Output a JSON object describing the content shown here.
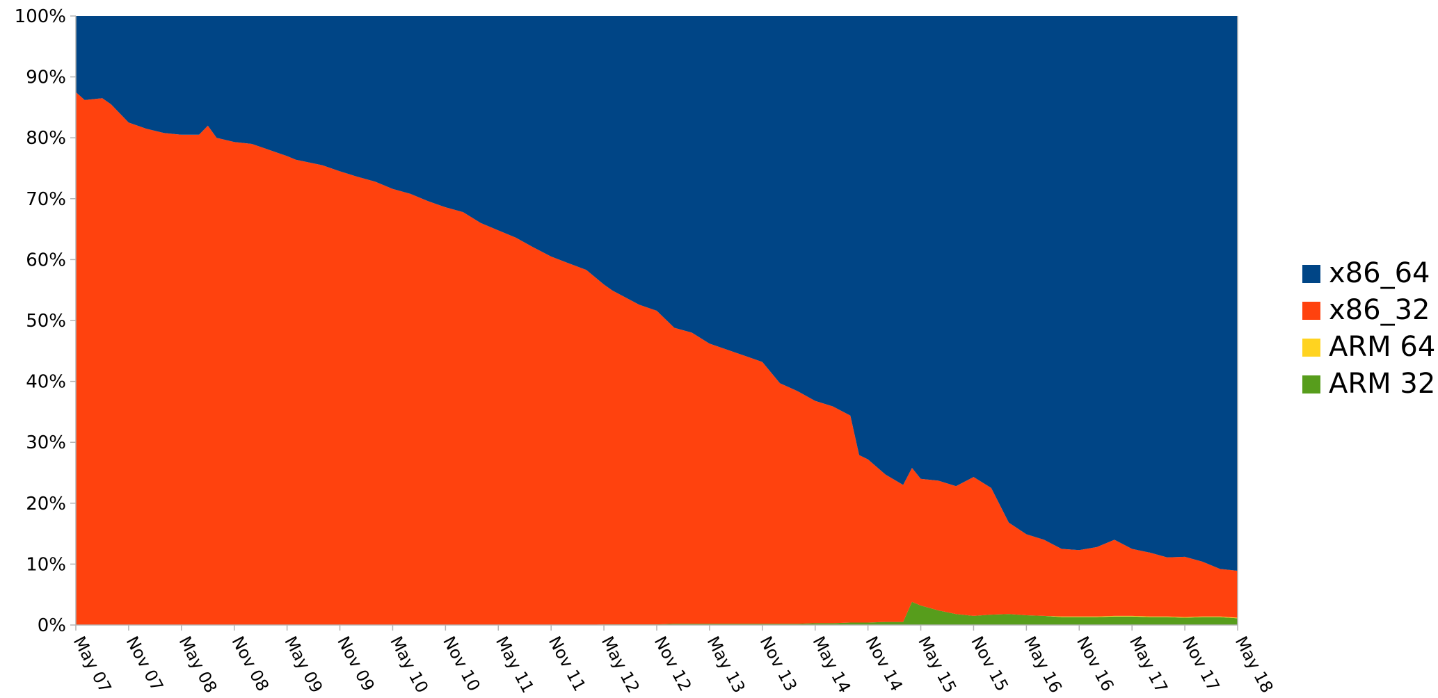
{
  "chart_data": {
    "type": "area",
    "stacked": "percent",
    "title": "",
    "xlabel": "",
    "ylabel": "",
    "ylim": [
      0,
      100
    ],
    "y_ticks": [
      "0%",
      "10%",
      "20%",
      "30%",
      "40%",
      "50%",
      "60%",
      "70%",
      "80%",
      "90%",
      "100%"
    ],
    "x_ticks": [
      "May 07",
      "Nov 07",
      "May 08",
      "Nov 08",
      "May 09",
      "Nov 09",
      "May 10",
      "Nov 10",
      "May 11",
      "Nov 11",
      "May 12",
      "Nov 12",
      "May 13",
      "Nov 13",
      "May 14",
      "Nov 14",
      "May 15",
      "Nov 15",
      "May 16",
      "Nov 16",
      "May 17",
      "Nov 17",
      "May 18"
    ],
    "legend_position": "right",
    "grid": false,
    "x": [
      "2007-05",
      "2007-06",
      "2007-08",
      "2007-09",
      "2007-11",
      "2008-01",
      "2008-03",
      "2008-05",
      "2008-07",
      "2008-08",
      "2008-09",
      "2008-11",
      "2009-01",
      "2009-03",
      "2009-05",
      "2009-06",
      "2009-09",
      "2009-11",
      "2010-01",
      "2010-03",
      "2010-05",
      "2010-07",
      "2010-09",
      "2010-11",
      "2011-01",
      "2011-03",
      "2011-05",
      "2011-07",
      "2011-09",
      "2011-11",
      "2012-01",
      "2012-03",
      "2012-05",
      "2012-06",
      "2012-09",
      "2012-11",
      "2013-01",
      "2013-03",
      "2013-05",
      "2013-07",
      "2013-09",
      "2013-11",
      "2014-01",
      "2014-03",
      "2014-05",
      "2014-07",
      "2014-09",
      "2014-10",
      "2014-11",
      "2015-01",
      "2015-03",
      "2015-04",
      "2015-05",
      "2015-07",
      "2015-09",
      "2015-11",
      "2016-01",
      "2016-03",
      "2016-05",
      "2016-07",
      "2016-09",
      "2016-11",
      "2017-01",
      "2017-03",
      "2017-05",
      "2017-07",
      "2017-09",
      "2017-11",
      "2018-01",
      "2018-03",
      "2018-05"
    ],
    "series": [
      {
        "name": "ARM 32",
        "color": "#579d1c",
        "values": [
          0,
          0,
          0,
          0,
          0,
          0,
          0,
          0,
          0,
          0,
          0,
          0,
          0,
          0,
          0,
          0,
          0,
          0,
          0,
          0,
          0,
          0,
          0,
          0,
          0,
          0,
          0,
          0,
          0,
          0,
          0,
          0,
          0.1,
          0.1,
          0.1,
          0.1,
          0.2,
          0.2,
          0.2,
          0.2,
          0.2,
          0.2,
          0.2,
          0.2,
          0.3,
          0.3,
          0.4,
          0.4,
          0.4,
          0.5,
          0.5,
          3.8,
          3.2,
          2.4,
          1.8,
          1.5,
          1.7,
          1.8,
          1.6,
          1.5,
          1.3,
          1.3,
          1.3,
          1.4,
          1.4,
          1.3,
          1.3,
          1.2,
          1.3,
          1.3,
          1.1
        ]
      },
      {
        "name": "ARM 64",
        "color": "#ffd320",
        "values": [
          0,
          0,
          0,
          0,
          0,
          0,
          0,
          0,
          0,
          0,
          0,
          0,
          0,
          0,
          0,
          0,
          0,
          0,
          0,
          0,
          0,
          0,
          0,
          0,
          0,
          0,
          0,
          0,
          0,
          0,
          0,
          0,
          0,
          0,
          0,
          0,
          0,
          0,
          0,
          0,
          0,
          0,
          0,
          0,
          0,
          0,
          0,
          0,
          0,
          0,
          0,
          0,
          0,
          0,
          0,
          0,
          0,
          0,
          0,
          0,
          0.1,
          0.1,
          0.1,
          0.1,
          0.1,
          0.1,
          0.1,
          0.1,
          0.1,
          0.1,
          0.1
        ]
      },
      {
        "name": "x86_32",
        "color": "#ff420e",
        "values": [
          87.5,
          86.2,
          86.5,
          85.5,
          82.5,
          81.5,
          80.8,
          80.5,
          80.5,
          82.0,
          80.0,
          79.3,
          79.0,
          78.0,
          77.0,
          76.4,
          75.5,
          74.5,
          73.6,
          72.8,
          71.6,
          70.8,
          69.6,
          68.6,
          67.8,
          66.0,
          64.8,
          63.6,
          62.0,
          60.5,
          59.4,
          58.3,
          55.8,
          54.8,
          52.5,
          51.5,
          48.6,
          47.8,
          46.0,
          45.0,
          44.0,
          43.0,
          39.5,
          38.2,
          36.5,
          35.6,
          34.0,
          27.5,
          26.8,
          24.2,
          22.5,
          22.0,
          20.8,
          21.3,
          21.0,
          22.8,
          20.8,
          15.0,
          13.3,
          12.5,
          11.1,
          10.9,
          11.4,
          12.5,
          11.0,
          10.5,
          9.7,
          9.9,
          9.0,
          7.8,
          7.7
        ]
      },
      {
        "name": "x86_64",
        "color": "#004586",
        "values": [
          12.5,
          13.8,
          13.5,
          14.5,
          17.5,
          18.5,
          19.2,
          19.5,
          19.5,
          18.0,
          20.0,
          20.7,
          21.0,
          22.0,
          23.0,
          23.6,
          24.5,
          25.5,
          26.4,
          27.2,
          28.4,
          29.2,
          30.4,
          31.4,
          32.2,
          34.0,
          35.2,
          36.4,
          38.0,
          39.5,
          40.6,
          41.7,
          44.1,
          45.1,
          47.4,
          48.4,
          51.2,
          52.0,
          53.8,
          54.8,
          55.8,
          56.8,
          60.3,
          61.6,
          63.2,
          64.1,
          65.6,
          72.1,
          72.8,
          75.3,
          77.0,
          74.2,
          76.0,
          76.3,
          77.2,
          75.7,
          77.5,
          83.2,
          85.1,
          86.0,
          87.5,
          87.7,
          87.2,
          86.0,
          87.5,
          88.1,
          88.9,
          88.8,
          89.6,
          90.8,
          91.1
        ]
      }
    ]
  },
  "legend": {
    "items": [
      {
        "label": "x86_64",
        "color": "#004586"
      },
      {
        "label": "x86_32",
        "color": "#ff420e"
      },
      {
        "label": "ARM 64",
        "color": "#ffd320"
      },
      {
        "label": "ARM 32",
        "color": "#579d1c"
      }
    ]
  }
}
